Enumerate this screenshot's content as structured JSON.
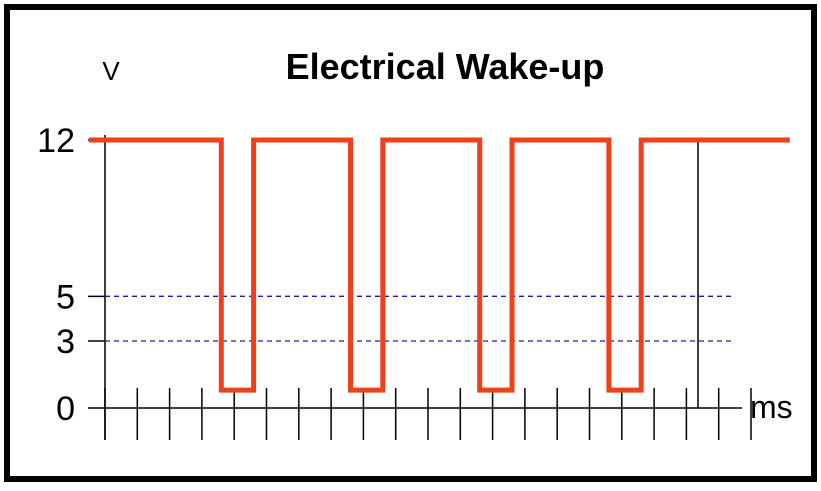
{
  "chart_data": {
    "type": "line",
    "title": "Electrical Wake-up",
    "ylabel": "V",
    "xlabel": "ms",
    "y_ticks": [
      {
        "value": 12,
        "label": "12"
      },
      {
        "value": 5,
        "label": "5"
      },
      {
        "value": 3,
        "label": "3"
      },
      {
        "value": 0,
        "label": "0"
      }
    ],
    "threshold_lines": [
      5,
      3
    ],
    "xlim": [
      0,
      20
    ],
    "x_tick_count": 21,
    "signal": {
      "color": "#f0401a",
      "low_level": 0.8,
      "points": [
        [
          -0.5,
          12
        ],
        [
          3.6,
          12
        ],
        [
          3.6,
          0.8
        ],
        [
          4.6,
          0.8
        ],
        [
          4.6,
          12
        ],
        [
          7.6,
          12
        ],
        [
          7.6,
          0.8
        ],
        [
          8.6,
          0.8
        ],
        [
          8.6,
          12
        ],
        [
          11.6,
          12
        ],
        [
          11.6,
          0.8
        ],
        [
          12.6,
          0.8
        ],
        [
          12.6,
          12
        ],
        [
          15.6,
          12
        ],
        [
          15.6,
          0.8
        ],
        [
          16.6,
          0.8
        ],
        [
          16.6,
          12
        ],
        [
          21.2,
          12
        ]
      ]
    },
    "threshold_color": "#2020a0",
    "grid": false,
    "legend": "none"
  }
}
